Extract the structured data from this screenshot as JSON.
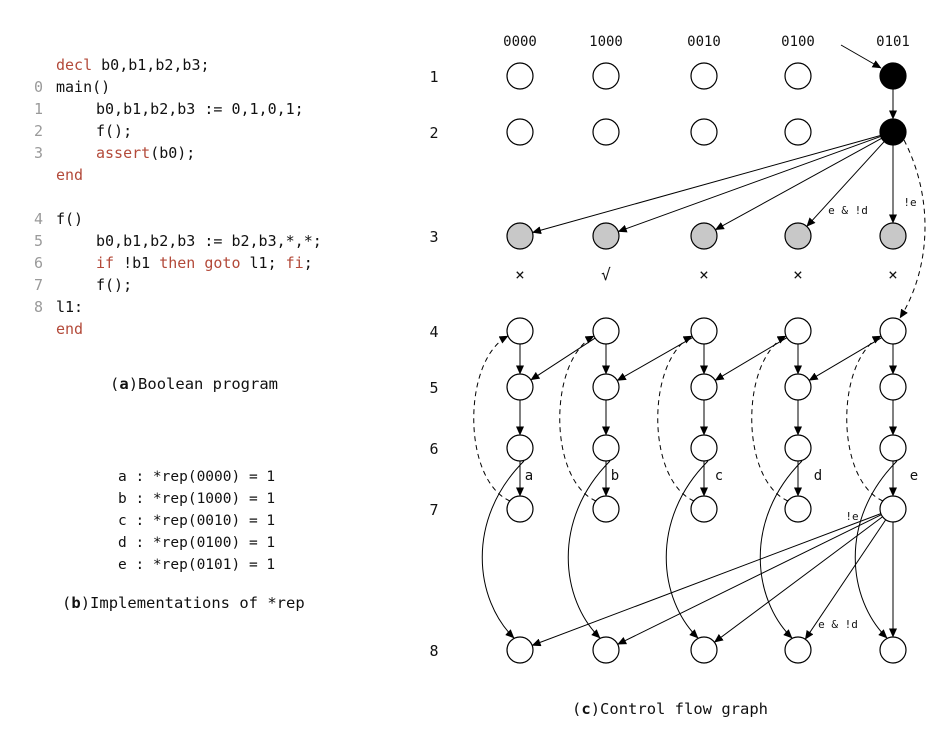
{
  "program": {
    "lines": [
      {
        "num": "",
        "indent": 0,
        "parts": [
          {
            "t": "decl",
            "kw": true
          },
          {
            "t": " b0,b1,b2,b3;",
            "kw": false
          }
        ]
      },
      {
        "num": "0",
        "indent": 0,
        "parts": [
          {
            "t": "main()",
            "kw": false
          }
        ]
      },
      {
        "num": "1",
        "indent": 1,
        "parts": [
          {
            "t": "b0,b1,b2,b3 := 0,1,0,1;",
            "kw": false
          }
        ]
      },
      {
        "num": "2",
        "indent": 1,
        "parts": [
          {
            "t": "f();",
            "kw": false
          }
        ]
      },
      {
        "num": "3",
        "indent": 1,
        "parts": [
          {
            "t": "assert",
            "kw": true
          },
          {
            "t": "(b0);",
            "kw": false
          }
        ]
      },
      {
        "num": "",
        "indent": 0,
        "parts": [
          {
            "t": "end",
            "kw": true
          }
        ]
      },
      {
        "num": "",
        "indent": 0,
        "parts": []
      },
      {
        "num": "4",
        "indent": 0,
        "parts": [
          {
            "t": "f()",
            "kw": false
          }
        ]
      },
      {
        "num": "5",
        "indent": 1,
        "parts": [
          {
            "t": "b0,b1,b2,b3 := b2,b3,*,*;",
            "kw": false
          }
        ]
      },
      {
        "num": "6",
        "indent": 1,
        "parts": [
          {
            "t": "if",
            "kw": true
          },
          {
            "t": " !b1 ",
            "kw": false
          },
          {
            "t": "then",
            "kw": true
          },
          {
            "t": " ",
            "kw": false
          },
          {
            "t": "goto",
            "kw": true
          },
          {
            "t": " l1; ",
            "kw": false
          },
          {
            "t": "fi",
            "kw": true
          },
          {
            "t": ";",
            "kw": false
          }
        ]
      },
      {
        "num": "7",
        "indent": 1,
        "parts": [
          {
            "t": "f();",
            "kw": false
          }
        ]
      },
      {
        "num": "8",
        "indent": 0,
        "parts": [
          {
            "t": "l1:",
            "kw": false
          }
        ]
      },
      {
        "num": "",
        "indent": 0,
        "parts": [
          {
            "t": "end",
            "kw": true
          }
        ]
      }
    ],
    "caption_letter": "a",
    "caption_text": "Boolean program"
  },
  "rep": {
    "lines": [
      "a : *rep(0000) = 1",
      "b : *rep(1000) = 1",
      "c : *rep(0010) = 1",
      "d : *rep(0100) = 1",
      "e : *rep(0101) = 1"
    ],
    "caption_letter": "b",
    "caption_text": "Implementations of *rep"
  },
  "cfg": {
    "columns": [
      "0000",
      "1000",
      "0010",
      "0100",
      "0101"
    ],
    "rows": [
      "1",
      "2",
      "3",
      "4",
      "5",
      "6",
      "7",
      "8"
    ],
    "marks": [
      "×",
      "√",
      "×",
      "×",
      "×"
    ],
    "edge_labels": [
      "a",
      "b",
      "c",
      "d",
      "e"
    ],
    "label_e_and_not_d": "e & !d",
    "label_not_e": "!e",
    "caption_letter": "c",
    "caption_text": "Control flow graph",
    "colors": {
      "filled": "#000000",
      "grey": "#c8c8c8",
      "stroke": "#000000"
    }
  }
}
